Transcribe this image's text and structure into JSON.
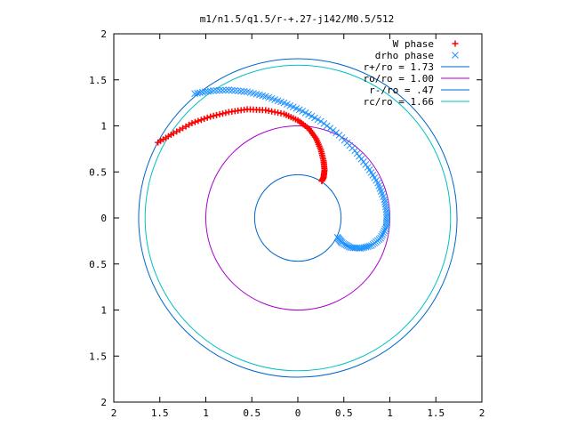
{
  "chart_data": {
    "type": "scatter",
    "title": "m1/n1.5/q1.5/r-+.27-j142/M0.5/512",
    "xlim": [
      -2,
      2
    ],
    "ylim": [
      -2,
      2
    ],
    "x_ticks": [
      -2,
      -1.5,
      -1,
      -0.5,
      0,
      0.5,
      1,
      1.5,
      2
    ],
    "y_ticks": [
      -2,
      -1.5,
      -1,
      -0.5,
      0,
      0.5,
      1,
      1.5,
      2
    ],
    "x_tick_labels": [
      "2",
      "1.5",
      "1",
      "0.5",
      "0",
      "0.5",
      "1",
      "1.5",
      "2"
    ],
    "y_tick_labels": [
      "2",
      "1.5",
      "1",
      "0.5",
      "0",
      "0.5",
      "1",
      "1.5",
      "2"
    ],
    "grid": false,
    "legend_position": "top-right",
    "series": [
      {
        "name": "W phase",
        "marker": "plus",
        "color": "#ff0000",
        "points": [
          [
            -1.52,
            0.82
          ],
          [
            -1.35,
            0.92
          ],
          [
            -1.15,
            1.03
          ],
          [
            -0.95,
            1.1
          ],
          [
            -0.75,
            1.15
          ],
          [
            -0.55,
            1.18
          ],
          [
            -0.35,
            1.17
          ],
          [
            -0.15,
            1.13
          ],
          [
            0.0,
            1.06
          ],
          [
            0.12,
            0.97
          ],
          [
            0.2,
            0.86
          ],
          [
            0.25,
            0.74
          ],
          [
            0.28,
            0.62
          ],
          [
            0.29,
            0.52
          ],
          [
            0.28,
            0.44
          ],
          [
            0.26,
            0.4
          ]
        ]
      },
      {
        "name": "drho phase",
        "marker": "cross",
        "color": "#1e90ff",
        "points": [
          [
            -1.12,
            1.35
          ],
          [
            -0.95,
            1.38
          ],
          [
            -0.75,
            1.39
          ],
          [
            -0.55,
            1.37
          ],
          [
            -0.35,
            1.32
          ],
          [
            -0.15,
            1.25
          ],
          [
            0.05,
            1.16
          ],
          [
            0.25,
            1.05
          ],
          [
            0.45,
            0.9
          ],
          [
            0.62,
            0.73
          ],
          [
            0.76,
            0.55
          ],
          [
            0.87,
            0.38
          ],
          [
            0.94,
            0.2
          ],
          [
            0.97,
            0.04
          ],
          [
            0.96,
            -0.1
          ],
          [
            0.9,
            -0.22
          ],
          [
            0.8,
            -0.3
          ],
          [
            0.68,
            -0.33
          ],
          [
            0.57,
            -0.32
          ],
          [
            0.48,
            -0.27
          ],
          [
            0.43,
            -0.21
          ]
        ]
      },
      {
        "name": "r+/ro = 1.73",
        "type": "circle",
        "radius": 1.73,
        "color": "#0066cc"
      },
      {
        "name": "ro/ro = 1.00",
        "type": "circle",
        "radius": 1.0,
        "color": "#aa00cc"
      },
      {
        "name": "r-/ro = .47",
        "type": "circle",
        "radius": 0.47,
        "color": "#0066cc"
      },
      {
        "name": "rc/ro = 1.66",
        "type": "circle",
        "radius": 1.66,
        "color": "#00c0c0"
      }
    ]
  }
}
